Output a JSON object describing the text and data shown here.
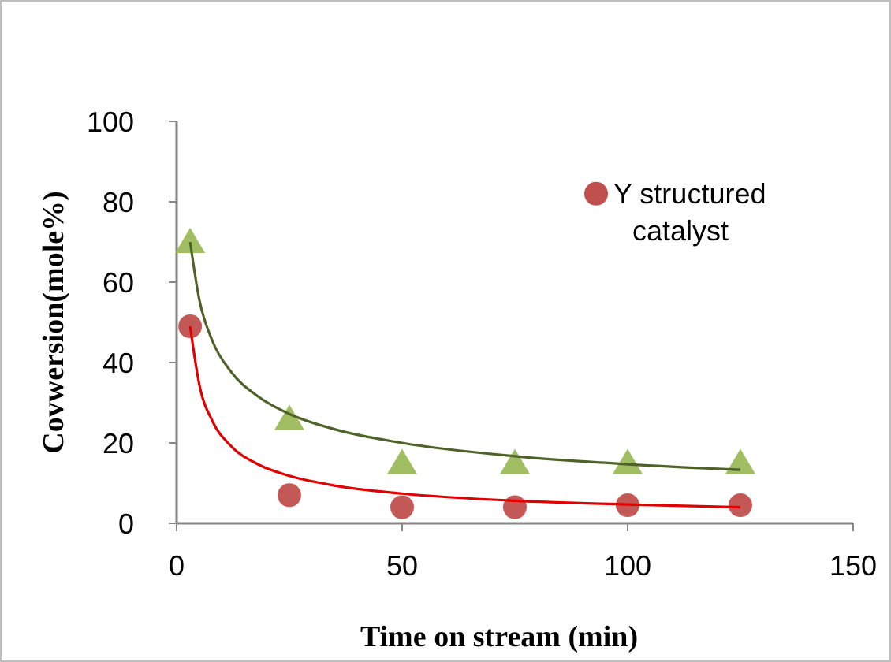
{
  "chart_data": {
    "type": "scatter",
    "xlabel": "Time on stream (min)",
    "ylabel": "Covwersion(mole%)",
    "xlim": [
      0,
      150
    ],
    "xticks": [
      0,
      50,
      100,
      150
    ],
    "ylim": [
      0,
      100
    ],
    "yticks": [
      0,
      20,
      40,
      60,
      80,
      100
    ],
    "grid": false,
    "legend": "top right",
    "series": [
      {
        "name": "Y structured catalyst",
        "color": "#c0504d",
        "marker": "circle",
        "x": [
          3,
          25,
          50,
          75,
          100,
          125
        ],
        "values": [
          49,
          7,
          4,
          4,
          4.5,
          4.5
        ]
      },
      {
        "color": "#9bbb59",
        "marker": "triangle",
        "x": [
          3,
          25,
          50,
          75,
          100,
          125
        ],
        "values": [
          70,
          26,
          15,
          15,
          15,
          15
        ]
      },
      {
        "type": "line",
        "color": "#e00000",
        "x": [
          3,
          5,
          8,
          12,
          18,
          25,
          35,
          50,
          75,
          100,
          125
        ],
        "values": [
          49,
          34.7,
          25.3,
          19.3,
          14.7,
          11.8,
          9.4,
          7.4,
          5.6,
          4.7,
          4
        ]
      },
      {
        "type": "line",
        "color": "#4f6228",
        "x": [
          3,
          5,
          8,
          12,
          18,
          25,
          35,
          50,
          75,
          100,
          125
        ],
        "values": [
          70,
          55.8,
          45.2,
          37.8,
          31.6,
          27.2,
          23.4,
          20,
          16.7,
          14.7,
          13.3
        ]
      }
    ]
  }
}
